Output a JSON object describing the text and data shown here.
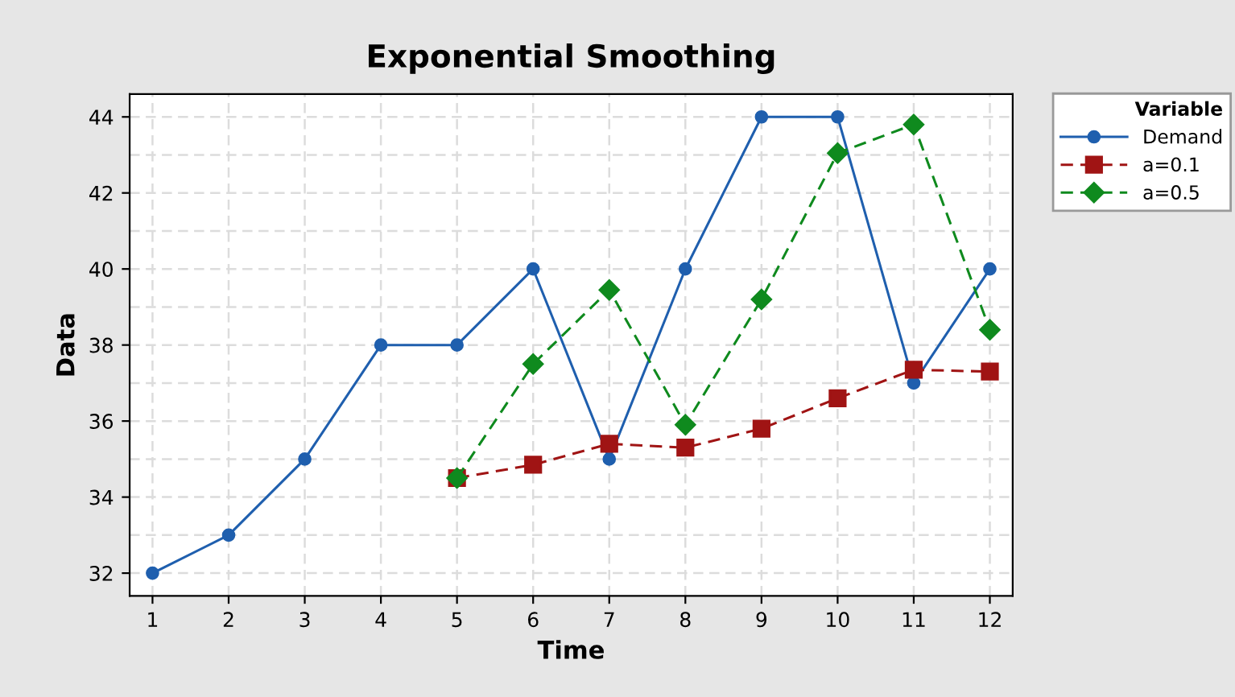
{
  "chart_data": {
    "type": "line",
    "title": "Exponential Smoothing",
    "xlabel": "Time",
    "ylabel": "Data",
    "legend_title": "Variable",
    "legend": "right",
    "x": [
      1,
      2,
      3,
      4,
      5,
      6,
      7,
      8,
      9,
      10,
      11,
      12
    ],
    "series": [
      {
        "name": "Demand",
        "color": "#1f5fae",
        "values": [
          32,
          33,
          35,
          38,
          38,
          40,
          35,
          40,
          44,
          44,
          37,
          40
        ],
        "marker": "circle",
        "line_style": "solid"
      },
      {
        "name": "a=0.1",
        "color": "#a01414",
        "values": [
          null,
          null,
          null,
          null,
          34.5,
          34.85,
          35.4,
          35.3,
          35.8,
          36.6,
          37.35,
          37.3
        ],
        "marker": "square",
        "line_style": "dashed"
      },
      {
        "name": "a=0.5",
        "color": "#0f8a1e",
        "values": [
          null,
          null,
          null,
          null,
          34.5,
          37.5,
          39.45,
          35.9,
          39.2,
          43.05,
          43.8,
          38.4
        ],
        "marker": "diamond",
        "line_style": "dashed"
      }
    ],
    "xlim": [
      0.7,
      12.3
    ],
    "ylim": [
      31.4,
      44.6
    ],
    "xticks": [
      1,
      2,
      3,
      4,
      5,
      6,
      7,
      8,
      9,
      10,
      11,
      12
    ],
    "yticks": [
      32,
      {
        "value": 33,
        "label": null
      },
      34,
      {
        "value": 35,
        "label": null
      },
      36,
      {
        "value": 37,
        "label": null
      },
      38,
      {
        "value": 39,
        "label": null
      },
      40,
      {
        "value": 41,
        "label": null
      },
      42,
      {
        "value": 43,
        "label": null
      },
      44
    ],
    "grid": true
  }
}
